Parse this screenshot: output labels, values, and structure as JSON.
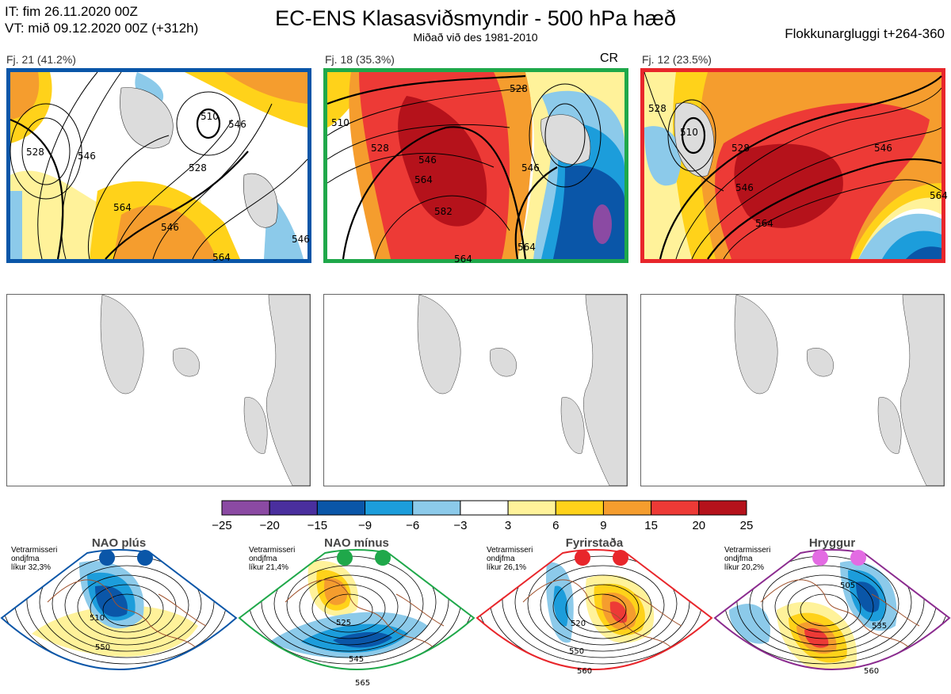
{
  "header": {
    "it_line": "IT: fim 26.11.2020 00Z",
    "vt_line": "VT: mið 09.12.2020 00Z  (+312h)",
    "title": "EC-ENS Klasasviðsmyndir - 500 hPa hæð",
    "subtitle": "Miðað við des 1981-2010",
    "window": "Flokkunargluggi t+264-360"
  },
  "clusters": [
    {
      "label": "Fj. 21 (41.2%)",
      "border_color": "#0a56a8",
      "contours": [
        "528",
        "546",
        "510",
        "528",
        "546",
        "564",
        "546",
        "564",
        "546"
      ]
    },
    {
      "label": "Fj. 18 (35.3%)",
      "border_color": "#1fa84a",
      "tag": "CR",
      "contours": [
        "510",
        "528",
        "546",
        "564",
        "582",
        "528",
        "546",
        "564",
        "564"
      ]
    },
    {
      "label": "Fj. 12 (23.5%)",
      "border_color": "#e8262b",
      "contours": [
        "510",
        "528",
        "546",
        "564",
        "546",
        "528",
        "564"
      ]
    }
  ],
  "colorbar": {
    "colors": [
      "#8b4aa3",
      "#4a2f9e",
      "#0a56a8",
      "#1c9ddb",
      "#8ccaea",
      "#ffffff",
      "#fff29a",
      "#ffd21a",
      "#f59d2e",
      "#ed3a36",
      "#b5121b"
    ],
    "labels": [
      "−25",
      "−20",
      "−15",
      "−9",
      "−6",
      "−3",
      "3",
      "6",
      "9",
      "15",
      "20",
      "25"
    ]
  },
  "regimes": [
    {
      "name": "NAO plús",
      "info_lines": [
        "Vetrarmisseri",
        "ondjfma",
        "líkur 32,3%"
      ],
      "dot_color": "#0a56a8",
      "border_color": "#0a56a8",
      "contours": [
        "510",
        "550"
      ]
    },
    {
      "name": "NAO mínus",
      "info_lines": [
        "Vetrarmisseri",
        "ondjfma",
        "líkur 21,4%"
      ],
      "dot_color": "#1fa84a",
      "border_color": "#1fa84a",
      "contours": [
        "525",
        "545",
        "565"
      ]
    },
    {
      "name": "Fyrirstaða",
      "info_lines": [
        "Vetrarmisseri",
        "ondjfma",
        "líkur 26,1%"
      ],
      "dot_color": "#e8262b",
      "border_color": "#e8262b",
      "contours": [
        "520",
        "550",
        "560"
      ]
    },
    {
      "name": "Hryggur",
      "info_lines": [
        "Vetrarmisseri",
        "ondjfma",
        "líkur 20,2%"
      ],
      "dot_color": "#e36be3",
      "border_color": "#8b2b8f",
      "contours": [
        "505",
        "535",
        "560"
      ]
    }
  ]
}
